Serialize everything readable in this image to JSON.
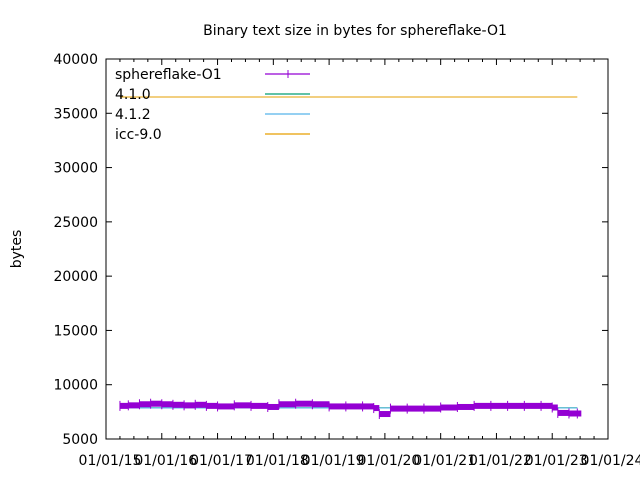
{
  "chart_data": {
    "type": "line",
    "title": "Binary text size in bytes for sphereflake-O1",
    "xlabel": "",
    "ylabel": "bytes",
    "xlim": [
      2015,
      2024
    ],
    "ylim": [
      5000,
      40000
    ],
    "yticks": [
      5000,
      10000,
      15000,
      20000,
      25000,
      30000,
      35000,
      40000
    ],
    "xticks": [
      2015,
      2016,
      2017,
      2018,
      2019,
      2020,
      2021,
      2022,
      2023,
      2024
    ],
    "xtick_labels": [
      "01/01/15",
      "01/01/16",
      "01/01/17",
      "01/01/18",
      "01/01/19",
      "01/01/20",
      "01/01/21",
      "01/01/22",
      "01/01/23",
      "01/01/24"
    ],
    "legend_position": "top-left",
    "series": [
      {
        "name": "sphereflake-O1",
        "color": "#9400d3",
        "style": "errorbars",
        "x": [
          2015.25,
          2015.4,
          2015.6,
          2015.8,
          2016.0,
          2016.2,
          2016.4,
          2016.6,
          2016.8,
          2017.0,
          2017.3,
          2017.6,
          2017.9,
          2018.1,
          2018.4,
          2018.7,
          2019.0,
          2019.3,
          2019.6,
          2019.8,
          2019.9,
          2020.1,
          2020.4,
          2020.7,
          2021.0,
          2021.3,
          2021.6,
          2021.9,
          2022.2,
          2022.5,
          2022.8,
          2023.0,
          2023.1,
          2023.3,
          2023.45
        ],
        "y": [
          8050,
          8100,
          8200,
          8250,
          8200,
          8150,
          8100,
          8150,
          8050,
          8000,
          8100,
          8050,
          7950,
          8200,
          8250,
          8200,
          8000,
          8000,
          8000,
          7850,
          7300,
          7800,
          7800,
          7800,
          7900,
          7950,
          8050,
          8050,
          8050,
          8050,
          8050,
          7900,
          7400,
          7350,
          7350
        ]
      },
      {
        "name": "4.1.0",
        "color": "#009e73",
        "x": [
          2015.25,
          2023.45
        ],
        "y": [
          7880,
          7880
        ]
      },
      {
        "name": "4.1.2",
        "color": "#56b4e9",
        "x": [
          2015.25,
          2023.45
        ],
        "y": [
          7850,
          7850
        ]
      },
      {
        "name": "icc-9.0",
        "color": "#e69f00",
        "x": [
          2015.25,
          2023.45
        ],
        "y": [
          36500,
          36500
        ]
      }
    ]
  }
}
